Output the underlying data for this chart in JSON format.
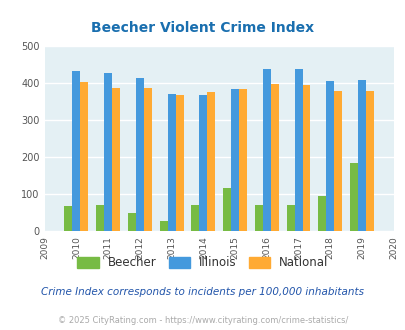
{
  "title": "Beecher Violent Crime Index",
  "title_color": "#1a6faf",
  "years": [
    2010,
    2011,
    2012,
    2013,
    2014,
    2015,
    2016,
    2017,
    2018,
    2019
  ],
  "beecher": [
    68,
    70,
    50,
    28,
    70,
    117,
    70,
    70,
    95,
    183
  ],
  "illinois": [
    432,
    428,
    414,
    372,
    369,
    383,
    437,
    437,
    405,
    408
  ],
  "national": [
    404,
    388,
    388,
    367,
    375,
    383,
    397,
    394,
    380,
    379
  ],
  "beecher_color": "#77bb44",
  "illinois_color": "#4499dd",
  "national_color": "#ffaa33",
  "bg_color": "#e4f0f4",
  "xlim": [
    2009,
    2020
  ],
  "ylim": [
    0,
    500
  ],
  "yticks": [
    0,
    100,
    200,
    300,
    400,
    500
  ],
  "xticks": [
    2009,
    2010,
    2011,
    2012,
    2013,
    2014,
    2015,
    2016,
    2017,
    2018,
    2019,
    2020
  ],
  "note": "Crime Index corresponds to incidents per 100,000 inhabitants",
  "footer": "© 2025 CityRating.com - https://www.cityrating.com/crime-statistics/",
  "note_color": "#2255aa",
  "footer_color": "#aaaaaa",
  "bar_width": 0.25
}
